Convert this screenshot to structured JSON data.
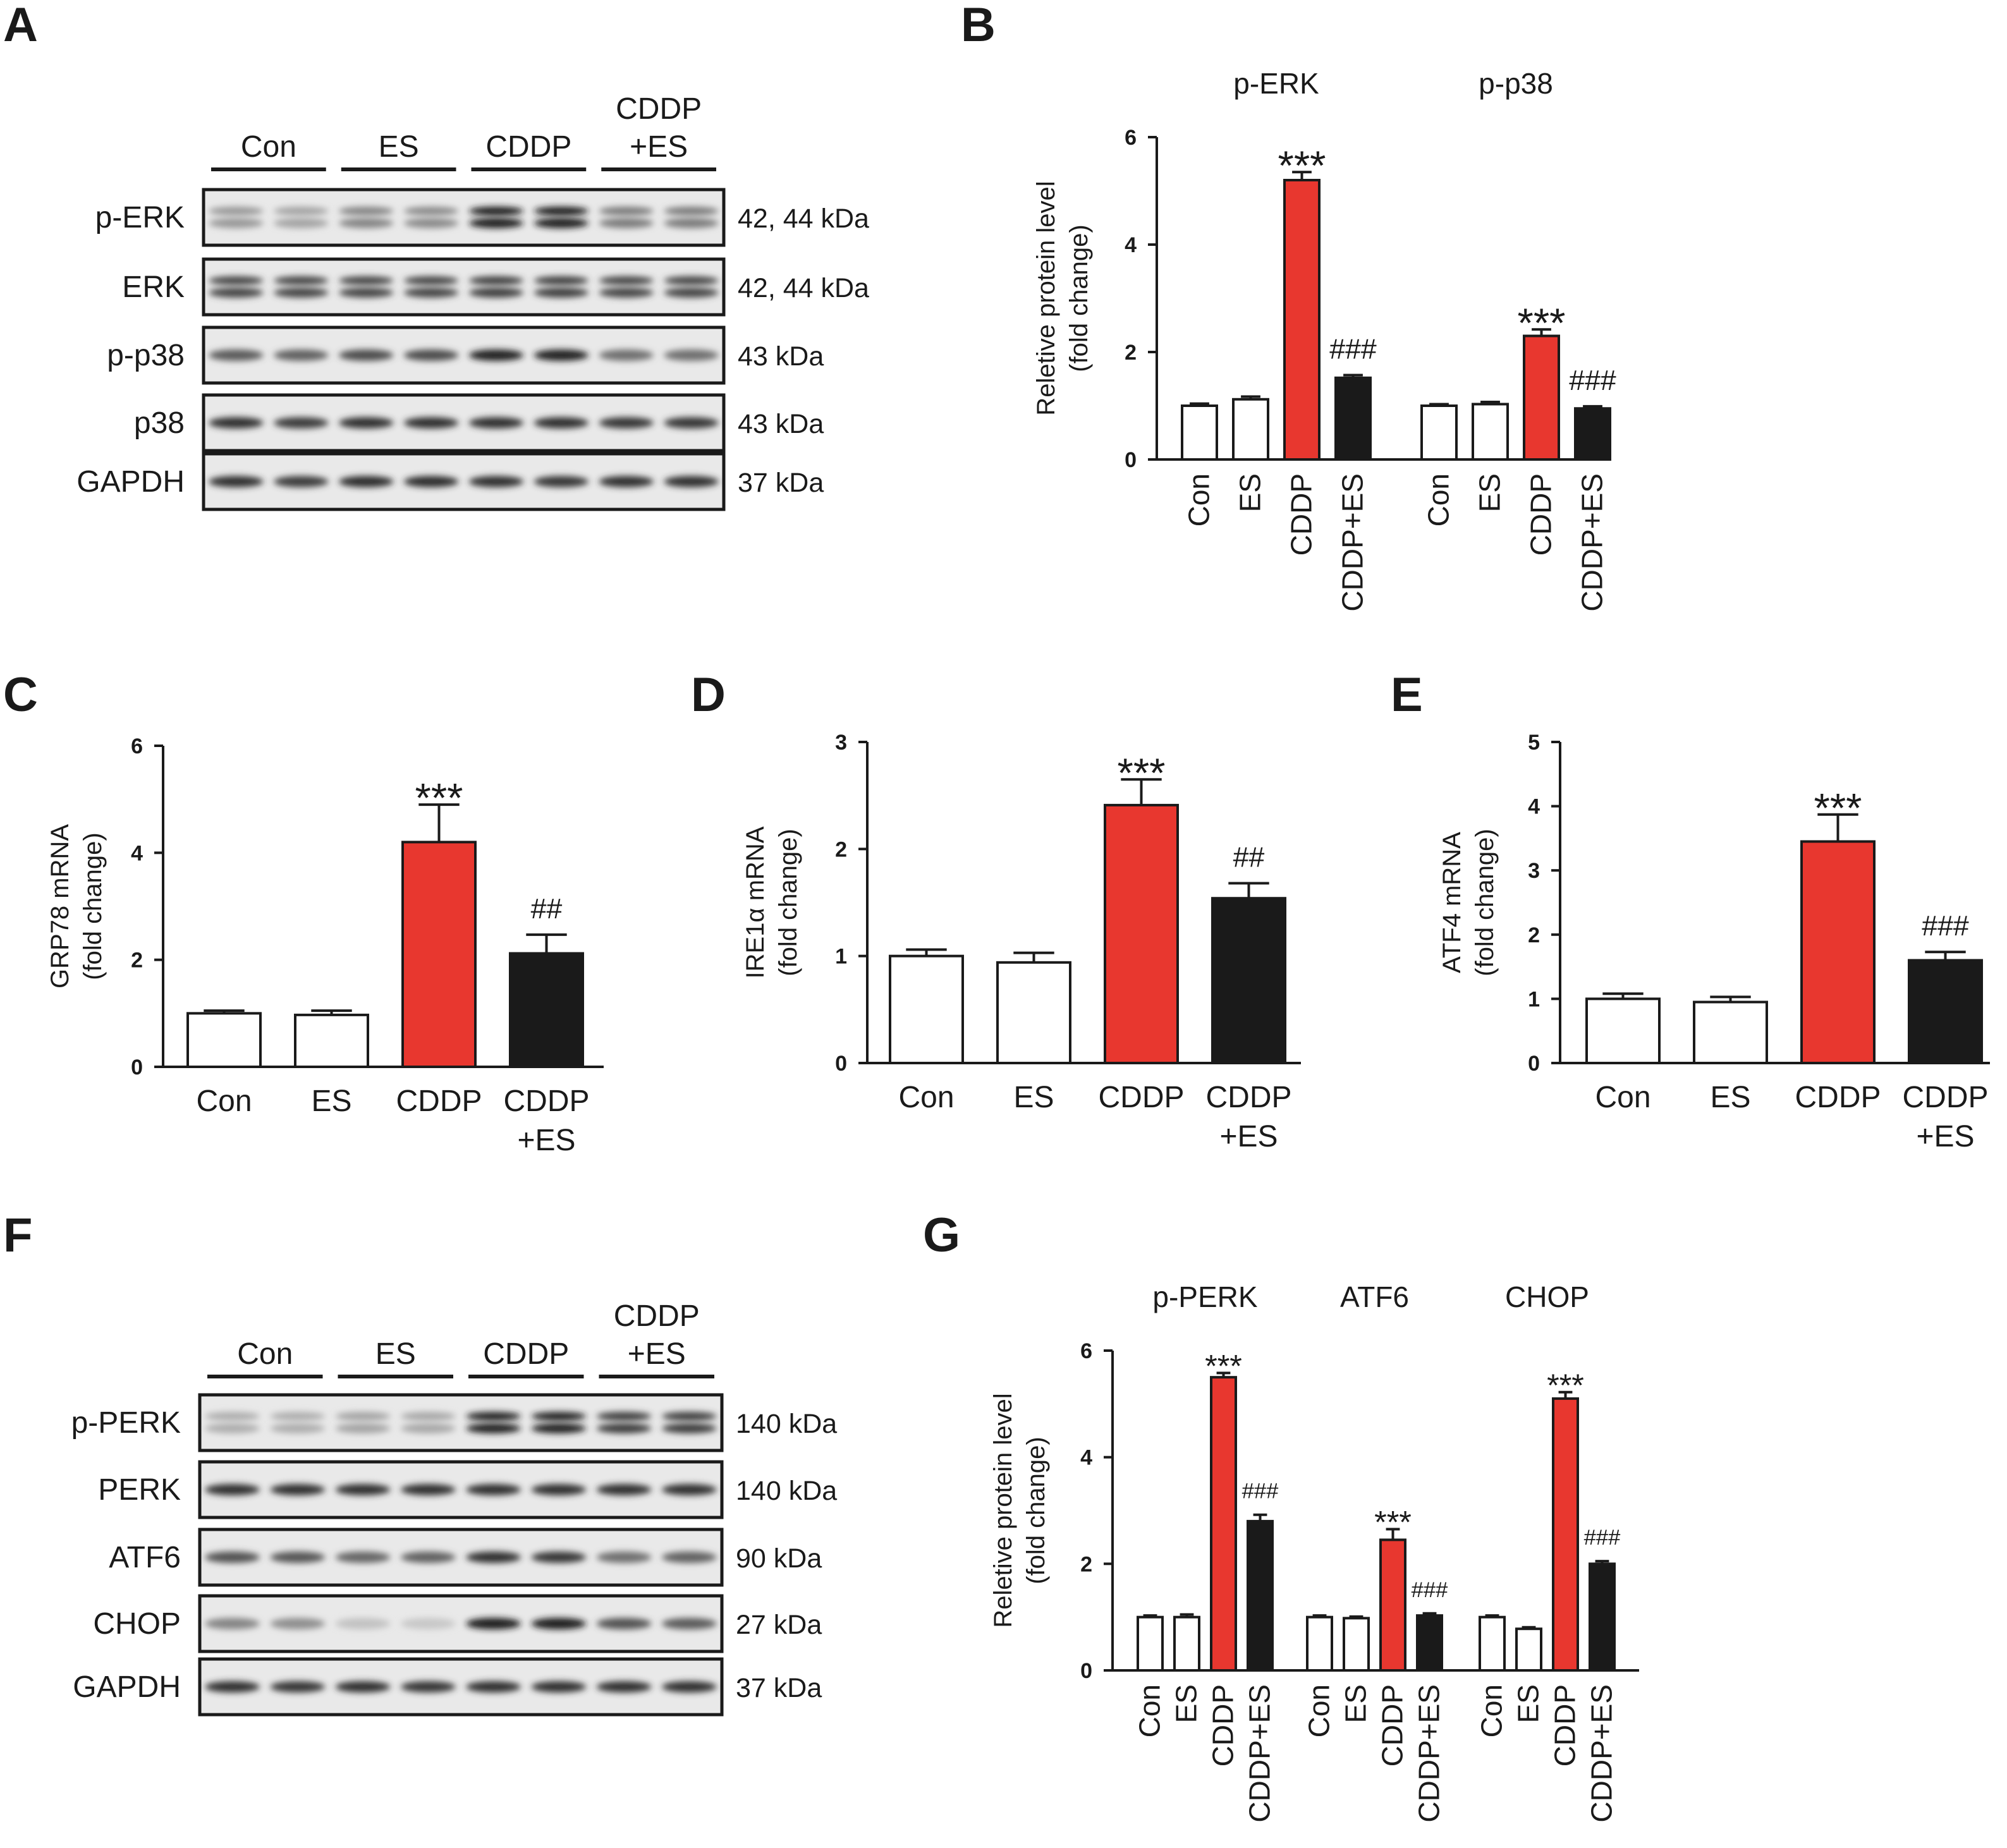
{
  "colors": {
    "red": "#e8372f",
    "black": "#1a1a1a",
    "white": "#ffffff",
    "axis": "#1a1a1a"
  },
  "panels": {
    "A": "A",
    "B": "B",
    "C": "C",
    "D": "D",
    "E": "E",
    "F": "F",
    "G": "G"
  },
  "blotA": {
    "groups": [
      "Con",
      "ES",
      "CDDP",
      "CDDP\n+ES"
    ],
    "rows": [
      {
        "label": "p-ERK",
        "size": "42, 44 kDa",
        "intensity": [
          0.35,
          0.3,
          0.45,
          0.42,
          0.95,
          0.95,
          0.5,
          0.5
        ],
        "double": true
      },
      {
        "label": "ERK",
        "size": "42, 44 kDa",
        "intensity": [
          0.75,
          0.75,
          0.75,
          0.75,
          0.78,
          0.78,
          0.75,
          0.75
        ],
        "double": true
      },
      {
        "label": "p-p38",
        "size": "43 kDa",
        "intensity": [
          0.65,
          0.62,
          0.72,
          0.72,
          0.92,
          0.92,
          0.55,
          0.55
        ],
        "double": false
      },
      {
        "label": "p38",
        "size": "43 kDa",
        "intensity": [
          0.85,
          0.8,
          0.85,
          0.85,
          0.85,
          0.85,
          0.82,
          0.82
        ],
        "double": false
      },
      {
        "label": "GAPDH",
        "size": "37 kDa",
        "intensity": [
          0.85,
          0.8,
          0.88,
          0.88,
          0.85,
          0.82,
          0.85,
          0.85
        ],
        "double": false
      }
    ]
  },
  "blotF": {
    "groups": [
      "Con",
      "ES",
      "CDDP",
      "CDDP\n+ES"
    ],
    "rows": [
      {
        "label": "p-PERK",
        "size": "140 kDa",
        "intensity": [
          0.25,
          0.25,
          0.3,
          0.28,
          0.92,
          0.92,
          0.8,
          0.8
        ],
        "double": true
      },
      {
        "label": "PERK",
        "size": "140 kDa",
        "intensity": [
          0.85,
          0.85,
          0.85,
          0.85,
          0.85,
          0.85,
          0.85,
          0.85
        ],
        "double": false
      },
      {
        "label": "ATF6",
        "size": "90 kDa",
        "intensity": [
          0.7,
          0.68,
          0.6,
          0.62,
          0.85,
          0.82,
          0.55,
          0.62
        ],
        "double": false
      },
      {
        "label": "CHOP",
        "size": "27 kDa",
        "intensity": [
          0.45,
          0.4,
          0.15,
          0.12,
          0.95,
          0.95,
          0.7,
          0.65
        ],
        "double": false
      },
      {
        "label": "GAPDH",
        "size": "37 kDa",
        "intensity": [
          0.85,
          0.82,
          0.85,
          0.82,
          0.85,
          0.85,
          0.85,
          0.85
        ],
        "double": false
      }
    ]
  },
  "chart_data": [
    {
      "panel": "B",
      "type": "bar",
      "ylabel": [
        "Reletive protein level",
        "(fold change)"
      ],
      "ylim": [
        0,
        6
      ],
      "yticks": [
        0,
        2,
        4,
        6
      ],
      "groups": [
        {
          "name": "p-ERK",
          "categories": [
            "Con",
            "ES",
            "CDDP",
            "CDDP+ES"
          ],
          "values": [
            1.0,
            1.12,
            5.2,
            1.52
          ],
          "errors": [
            0.04,
            0.05,
            0.15,
            0.05
          ],
          "annotations": [
            "",
            "",
            "***",
            "###"
          ]
        },
        {
          "name": "p-p38",
          "categories": [
            "Con",
            "ES",
            "CDDP",
            "CDDP+ES"
          ],
          "values": [
            1.0,
            1.03,
            2.3,
            0.95
          ],
          "errors": [
            0.03,
            0.04,
            0.12,
            0.04
          ],
          "annotations": [
            "",
            "",
            "***",
            "###"
          ]
        }
      ]
    },
    {
      "panel": "C",
      "type": "bar",
      "ylabel": [
        "GRP78 mRNA",
        "(fold change)"
      ],
      "ylim": [
        0,
        6
      ],
      "yticks": [
        0,
        2,
        4,
        6
      ],
      "categories": [
        "Con",
        "ES",
        "CDDP",
        "CDDP\n+ES"
      ],
      "values": [
        1.0,
        0.97,
        4.2,
        2.12
      ],
      "errors": [
        0.05,
        0.08,
        0.7,
        0.35
      ],
      "annotations": [
        "",
        "",
        "***",
        "##"
      ]
    },
    {
      "panel": "D",
      "type": "bar",
      "ylabel": [
        "IRE1α  mRNA",
        "(fold change)"
      ],
      "ylim": [
        0,
        3
      ],
      "yticks": [
        0,
        1,
        2,
        3
      ],
      "categories": [
        "Con",
        "ES",
        "CDDP",
        "CDDP\n+ES"
      ],
      "values": [
        1.0,
        0.94,
        2.41,
        1.54
      ],
      "errors": [
        0.06,
        0.09,
        0.24,
        0.14
      ],
      "annotations": [
        "",
        "",
        "***",
        "##"
      ]
    },
    {
      "panel": "E",
      "type": "bar",
      "ylabel": [
        "ATF4 mRNA",
        "(fold change)"
      ],
      "ylim": [
        0,
        5
      ],
      "yticks": [
        0,
        1,
        2,
        3,
        4,
        5
      ],
      "categories": [
        "Con",
        "ES",
        "CDDP",
        "CDDP\n+ES"
      ],
      "values": [
        1.0,
        0.95,
        3.45,
        1.6
      ],
      "errors": [
        0.08,
        0.08,
        0.42,
        0.13
      ],
      "annotations": [
        "",
        "",
        "***",
        "###"
      ]
    },
    {
      "panel": "G",
      "type": "bar",
      "ylabel": [
        "Reletive protein level",
        "(fold change)"
      ],
      "ylim": [
        0,
        6
      ],
      "yticks": [
        0,
        2,
        4,
        6
      ],
      "groups": [
        {
          "name": "p-PERK",
          "categories": [
            "Con",
            "ES",
            "CDDP",
            "CDDP+ES"
          ],
          "values": [
            1.0,
            1.0,
            5.5,
            2.8
          ],
          "errors": [
            0.03,
            0.05,
            0.08,
            0.12
          ],
          "annotations": [
            "",
            "",
            "***",
            "###"
          ]
        },
        {
          "name": "ATF6",
          "categories": [
            "Con",
            "ES",
            "CDDP",
            "CDDP+ES"
          ],
          "values": [
            1.0,
            0.98,
            2.45,
            1.03
          ],
          "errors": [
            0.03,
            0.03,
            0.2,
            0.04
          ],
          "annotations": [
            "",
            "",
            "***",
            "###"
          ]
        },
        {
          "name": "CHOP",
          "categories": [
            "Con",
            "ES",
            "CDDP",
            "CDDP+ES"
          ],
          "values": [
            1.0,
            0.78,
            5.1,
            2.0
          ],
          "errors": [
            0.03,
            0.03,
            0.12,
            0.05
          ],
          "annotations": [
            "",
            "",
            "***",
            "###"
          ]
        }
      ]
    }
  ]
}
